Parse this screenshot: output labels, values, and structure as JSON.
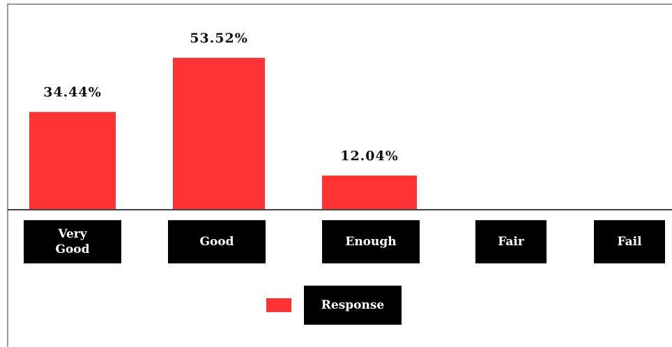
{
  "chart_data": {
    "type": "bar",
    "categories": [
      "Very\nGood",
      "Good",
      "Enough",
      "Fair",
      "Fail"
    ],
    "series": [
      {
        "name": "Response",
        "values": [
          34.44,
          53.52,
          12.04,
          0,
          0
        ],
        "labels": [
          "34.44%",
          "53.52%",
          "12.04%",
          "",
          ""
        ]
      }
    ],
    "ylim": [
      0,
      60
    ],
    "grid": false,
    "legend": "bottom-center"
  },
  "colors": {
    "bar": "#ff3333",
    "category_box": "#000000",
    "frame": "#999999"
  }
}
